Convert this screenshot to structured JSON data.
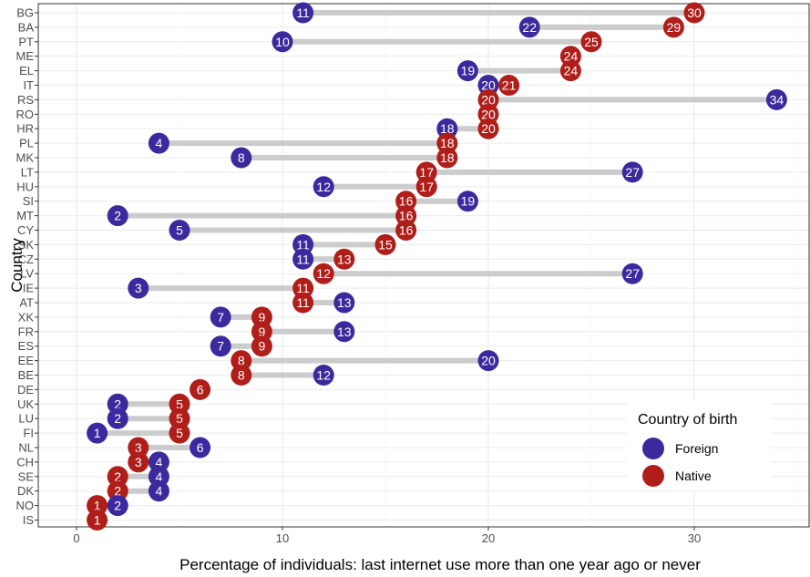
{
  "chart_data": {
    "type": "dumbbell",
    "title": "",
    "xlabel": "Percentage of individuals: last internet use more than one year ago or never",
    "ylabel": "Country",
    "xlim": [
      -1,
      35
    ],
    "x_ticks": [
      0,
      10,
      20,
      30
    ],
    "grid": true,
    "legend": {
      "title": "Country of birth",
      "position": "bottom-right",
      "items": [
        {
          "name": "Foreign",
          "color": "#3b2a9e"
        },
        {
          "name": "Native",
          "color": "#b01e1a"
        }
      ]
    },
    "series": [
      {
        "name": "Foreign",
        "color": "#3b2a9e"
      },
      {
        "name": "Native",
        "color": "#b01e1a"
      }
    ],
    "countries": [
      {
        "code": "BG",
        "foreign": 11,
        "native": 30
      },
      {
        "code": "BA",
        "foreign": 22,
        "native": 29
      },
      {
        "code": "PT",
        "foreign": 10,
        "native": 25
      },
      {
        "code": "ME",
        "foreign": null,
        "native": 24
      },
      {
        "code": "EL",
        "foreign": 19,
        "native": 24
      },
      {
        "code": "IT",
        "foreign": 20,
        "native": 21
      },
      {
        "code": "RS",
        "foreign": 34,
        "native": 20
      },
      {
        "code": "RO",
        "foreign": null,
        "native": 20
      },
      {
        "code": "HR",
        "foreign": 18,
        "native": 20
      },
      {
        "code": "PL",
        "foreign": 4,
        "native": 18
      },
      {
        "code": "MK",
        "foreign": 8,
        "native": 18
      },
      {
        "code": "LT",
        "foreign": 27,
        "native": 17
      },
      {
        "code": "HU",
        "foreign": 12,
        "native": 17
      },
      {
        "code": "SI",
        "foreign": 19,
        "native": 16
      },
      {
        "code": "MT",
        "foreign": 2,
        "native": 16
      },
      {
        "code": "CY",
        "foreign": 5,
        "native": 16
      },
      {
        "code": "SK",
        "foreign": 11,
        "native": 15
      },
      {
        "code": "CZ",
        "foreign": 11,
        "native": 13
      },
      {
        "code": "LV",
        "foreign": 27,
        "native": 12
      },
      {
        "code": "IE",
        "foreign": 3,
        "native": 11
      },
      {
        "code": "AT",
        "foreign": 13,
        "native": 11
      },
      {
        "code": "XK",
        "foreign": 7,
        "native": 9
      },
      {
        "code": "FR",
        "foreign": 13,
        "native": 9
      },
      {
        "code": "ES",
        "foreign": 7,
        "native": 9
      },
      {
        "code": "EE",
        "foreign": 20,
        "native": 8
      },
      {
        "code": "BE",
        "foreign": 12,
        "native": 8
      },
      {
        "code": "DE",
        "foreign": null,
        "native": 6
      },
      {
        "code": "UK",
        "foreign": 2,
        "native": 5
      },
      {
        "code": "LU",
        "foreign": 2,
        "native": 5
      },
      {
        "code": "FI",
        "foreign": 1,
        "native": 5
      },
      {
        "code": "NL",
        "foreign": 6,
        "native": 3
      },
      {
        "code": "CH",
        "foreign": 4,
        "native": 3
      },
      {
        "code": "SE",
        "foreign": 4,
        "native": 2
      },
      {
        "code": "DK",
        "foreign": 4,
        "native": 2
      },
      {
        "code": "NO",
        "foreign": 2,
        "native": 1
      },
      {
        "code": "IS",
        "foreign": null,
        "native": 1
      }
    ]
  }
}
